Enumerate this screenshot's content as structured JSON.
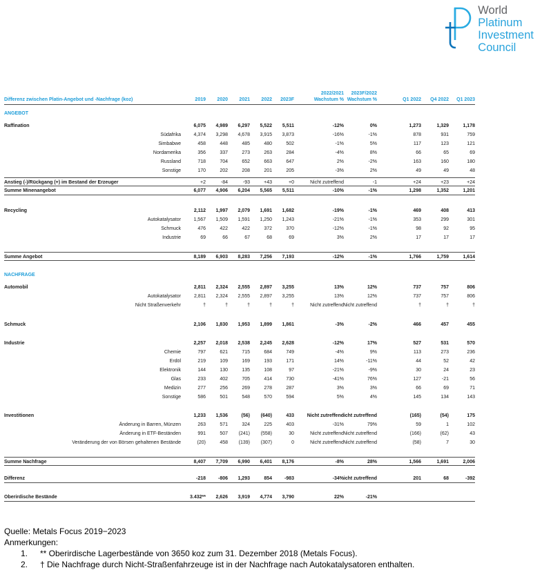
{
  "logo": {
    "icon": "wpic-pt-monogram-icon",
    "lines": [
      "World",
      "Platinum",
      "Investment",
      "Council"
    ],
    "brand_blue": "#29A3DC",
    "world_gray": "#626366"
  },
  "colors": {
    "header_blue": "#1D9DD9",
    "rule_gray": "#4b4b4b",
    "text": "#1a1a1a"
  },
  "table": {
    "title": "Differenz zwischen Platin-Angebot und -Nachfrage (koz)",
    "year_columns": [
      "2019",
      "2020",
      "2021",
      "2022",
      "2023F"
    ],
    "growth_columns": [
      {
        "line1": "2022/2021",
        "line2": "Wachstum %"
      },
      {
        "line1": "2023F/2022",
        "line2": "Wachstum %"
      }
    ],
    "quarter_columns": [
      "Q1 2022",
      "Q4 2022",
      "Q1 2023"
    ],
    "rows": [
      {
        "type": "section",
        "label": "ANGEBOT",
        "gap": 6
      },
      {
        "type": "main",
        "label": "Raffination",
        "gap": 5,
        "values": [
          "6,075",
          "4,989",
          "6,297",
          "5,522",
          "5,511",
          "-12%",
          "0%",
          "1,273",
          "1,329",
          "1,178"
        ]
      },
      {
        "type": "sub",
        "label": "Südafrika",
        "values": [
          "4,374",
          "3,298",
          "4,678",
          "3,915",
          "3,873",
          "-16%",
          "-1%",
          "878",
          "931",
          "759"
        ]
      },
      {
        "type": "sub",
        "label": "Simbabwe",
        "values": [
          "458",
          "448",
          "485",
          "480",
          "502",
          "-1%",
          "5%",
          "117",
          "123",
          "121"
        ]
      },
      {
        "type": "sub",
        "label": "Nordamerika",
        "values": [
          "356",
          "337",
          "273",
          "263",
          "284",
          "-4%",
          "8%",
          "66",
          "65",
          "69"
        ]
      },
      {
        "type": "sub",
        "label": "Russland",
        "values": [
          "718",
          "704",
          "652",
          "663",
          "647",
          "2%",
          "-2%",
          "163",
          "160",
          "180"
        ]
      },
      {
        "type": "sub",
        "label": "Sonstige",
        "values": [
          "170",
          "202",
          "208",
          "201",
          "205",
          "-3%",
          "2%",
          "49",
          "49",
          "48"
        ]
      },
      {
        "type": "label-bold",
        "label": "Anstieg (-)/Rückgang (+) im Bestand der Erzeuger",
        "gap": 3,
        "rule": "both",
        "values": [
          "+2",
          "-84",
          "-93",
          "+43",
          "+0",
          "Nicht zutreffend",
          "-1",
          "+24",
          "+23",
          "+24"
        ]
      },
      {
        "type": "total",
        "label": "Summe Minenangebot",
        "rule": "bottom",
        "values": [
          "6,077",
          "4,906",
          "6,204",
          "5,565",
          "5,511",
          "-10%",
          "-1%",
          "1,298",
          "1,352",
          "1,201"
        ]
      },
      {
        "type": "main",
        "label": "Recycling",
        "gap": 16,
        "values": [
          "2,112",
          "1,997",
          "2,079",
          "1,691",
          "1,682",
          "-19%",
          "-1%",
          "469",
          "408",
          "413"
        ]
      },
      {
        "type": "sub",
        "label": "Autokatalysator",
        "values": [
          "1,567",
          "1,509",
          "1,591",
          "1,250",
          "1,243",
          "-21%",
          "-1%",
          "353",
          "299",
          "301"
        ]
      },
      {
        "type": "sub",
        "label": "Schmuck",
        "values": [
          "476",
          "422",
          "422",
          "372",
          "370",
          "-12%",
          "-1%",
          "98",
          "92",
          "95"
        ]
      },
      {
        "type": "sub",
        "label": "Industrie",
        "values": [
          "69",
          "66",
          "67",
          "68",
          "69",
          "3%",
          "2%",
          "17",
          "17",
          "17"
        ]
      },
      {
        "type": "total",
        "label": "Summe Angebot",
        "gap": 14,
        "rule": "both",
        "values": [
          "8,189",
          "6,903",
          "8,283",
          "7,256",
          "7,193",
          "-12%",
          "-1%",
          "1,766",
          "1,759",
          "1,614"
        ]
      },
      {
        "type": "section",
        "label": "NACHFRAGE",
        "gap": 14
      },
      {
        "type": "main",
        "label": "Automobil",
        "gap": 5,
        "values": [
          "2,811",
          "2,324",
          "2,555",
          "2,897",
          "3,255",
          "13%",
          "12%",
          "737",
          "757",
          "806"
        ]
      },
      {
        "type": "sub",
        "label": "Autokatalysator",
        "values": [
          "2,811",
          "2,324",
          "2,555",
          "2,897",
          "3,255",
          "13%",
          "12%",
          "737",
          "757",
          "806"
        ]
      },
      {
        "type": "sub",
        "label": "Nicht Straßenverkehr",
        "values": [
          "†",
          "†",
          "†",
          "†",
          "†",
          "Nicht zutreffend",
          "Nicht zutreffend",
          "†",
          "†",
          "†"
        ]
      },
      {
        "type": "main",
        "label": "Schmuck",
        "gap": 15,
        "values": [
          "2,106",
          "1,830",
          "1,953",
          "1,899",
          "1,861",
          "-3%",
          "-2%",
          "466",
          "457",
          "455"
        ]
      },
      {
        "type": "main",
        "label": "Industrie",
        "gap": 14,
        "values": [
          "2,257",
          "2,018",
          "2,538",
          "2,245",
          "2,628",
          "-12%",
          "17%",
          "527",
          "531",
          "570"
        ]
      },
      {
        "type": "sub",
        "label": "Chemie",
        "values": [
          "797",
          "621",
          "715",
          "684",
          "749",
          "-4%",
          "9%",
          "113",
          "273",
          "236"
        ]
      },
      {
        "type": "sub",
        "label": "Erdöl",
        "values": [
          "219",
          "109",
          "169",
          "193",
          "171",
          "14%",
          "-11%",
          "44",
          "52",
          "42"
        ]
      },
      {
        "type": "sub",
        "label": "Elektronik",
        "values": [
          "144",
          "130",
          "135",
          "108",
          "97",
          "-21%",
          "-9%",
          "30",
          "24",
          "23"
        ]
      },
      {
        "type": "sub",
        "label": "Glas",
        "values": [
          "233",
          "402",
          "705",
          "414",
          "730",
          "-41%",
          "76%",
          "127",
          "-21",
          "56"
        ]
      },
      {
        "type": "sub",
        "label": "Medizin",
        "values": [
          "277",
          "256",
          "269",
          "278",
          "287",
          "3%",
          "3%",
          "66",
          "69",
          "71"
        ]
      },
      {
        "type": "sub",
        "label": "Sonstige",
        "values": [
          "586",
          "501",
          "548",
          "570",
          "594",
          "5%",
          "4%",
          "145",
          "134",
          "143"
        ]
      },
      {
        "type": "main",
        "label": "Investitionen",
        "gap": 14,
        "values": [
          "1,233",
          "1,536",
          "(56)",
          "(640)",
          "433",
          "Nicht zutreffend",
          "Nicht zutreffend",
          "(165)",
          "(54)",
          "175"
        ]
      },
      {
        "type": "sub",
        "label": "Änderung in Barren, Münzen",
        "values": [
          "263",
          "571",
          "324",
          "225",
          "403",
          "-31%",
          "79%",
          "59",
          "1",
          "102"
        ]
      },
      {
        "type": "sub",
        "label": "Änderung in ETF-Beständen",
        "values": [
          "991",
          "507",
          "(241)",
          "(558)",
          "30",
          "Nicht zutreffend",
          "Nicht zutreffend",
          "(166)",
          "(62)",
          "43"
        ]
      },
      {
        "type": "sub",
        "label": "Veränderung der von Börsen gehaltenen Bestände",
        "values": [
          "(20)",
          "458",
          "(139)",
          "(307)",
          "0",
          "Nicht zutreffend",
          "Nicht zutreffend",
          "(58)",
          "7",
          "30"
        ]
      },
      {
        "type": "total",
        "label": "Summe Nachfrage",
        "gap": 14,
        "rule": "both",
        "values": [
          "8,407",
          "7,709",
          "6,990",
          "6,401",
          "8,176",
          "-8%",
          "28%",
          "1,566",
          "1,691",
          "2,006"
        ]
      },
      {
        "type": "total",
        "label": "Differenz",
        "gap": 12,
        "rule": "bottom",
        "values": [
          "-218",
          "-806",
          "1,293",
          "854",
          "-983",
          "-34%",
          "Nicht zutreffend",
          "201",
          "68",
          "-392"
        ]
      },
      {
        "type": "total",
        "label": "Oberirdische Bestände",
        "gap": 14,
        "rule": "bottom",
        "values": [
          "3.432**",
          "2,626",
          "3,919",
          "4,774",
          "3,790",
          "22%",
          "-21%",
          "",
          "",
          ""
        ]
      }
    ]
  },
  "footer": {
    "source": "Quelle: Metals Focus 2019−2023",
    "notes_title": "Anmerkungen:",
    "notes": [
      {
        "num": "1.",
        "text": "** Oberirdische Lagerbestände von 3650 koz zum 31. Dezember 2018 (Metals Focus)."
      },
      {
        "num": "2.",
        "text": "† Die Nachfrage durch Nicht-Straßenfahrzeuge ist in der Nachfrage nach Autokatalysatoren enthalten."
      }
    ]
  }
}
